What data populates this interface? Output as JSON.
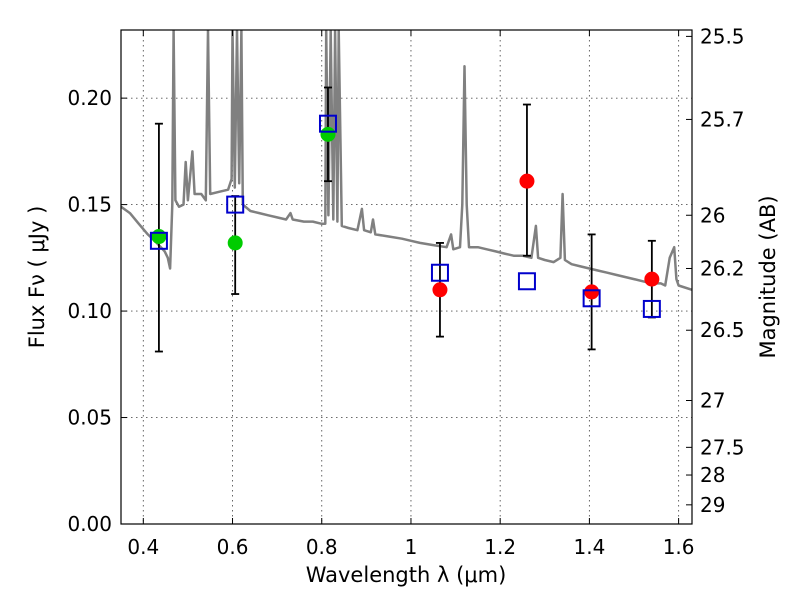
{
  "chart_data": {
    "type": "scatter",
    "title": "",
    "xlabel": "Wavelength  λ (μm)",
    "ylabel": "Flux  Fν  ( μJy )",
    "ylabel_right": "Magnitude (AB)",
    "xlim": [
      0.35,
      1.63
    ],
    "ylim": [
      0.0,
      0.232
    ],
    "grid": true,
    "legend": "none",
    "x_ticks": [
      {
        "v": 0.4,
        "label": "0.4"
      },
      {
        "v": 0.6,
        "label": "0.6"
      },
      {
        "v": 0.8,
        "label": "0.8"
      },
      {
        "v": 1.0,
        "label": "1"
      },
      {
        "v": 1.2,
        "label": "1.2"
      },
      {
        "v": 1.4,
        "label": "1.4"
      },
      {
        "v": 1.6,
        "label": "1.6"
      }
    ],
    "y_ticks": [
      {
        "v": 0.0,
        "label": "0.00"
      },
      {
        "v": 0.05,
        "label": "0.05"
      },
      {
        "v": 0.1,
        "label": "0.10"
      },
      {
        "v": 0.15,
        "label": "0.15"
      },
      {
        "v": 0.2,
        "label": "0.20"
      }
    ],
    "right_ticks": [
      {
        "label": "25.5",
        "flux": 0.229
      },
      {
        "label": "25.7",
        "flux": 0.19
      },
      {
        "label": "26",
        "flux": 0.145
      },
      {
        "label": "26.2",
        "flux": 0.12
      },
      {
        "label": "26.5",
        "flux": 0.091
      },
      {
        "label": "27",
        "flux": 0.058
      },
      {
        "label": "27.5",
        "flux": 0.036
      },
      {
        "label": "28",
        "flux": 0.023
      },
      {
        "label": "29",
        "flux": 0.009
      }
    ],
    "series": [
      {
        "marker": "circle",
        "color": "#00cc00",
        "points": [
          {
            "x": 0.435,
            "y": 0.135
          },
          {
            "x": 0.606,
            "y": 0.132
          },
          {
            "x": 0.814,
            "y": 0.183
          }
        ]
      },
      {
        "marker": "circle",
        "color": "#ff0000",
        "points": [
          {
            "x": 1.065,
            "y": 0.11
          },
          {
            "x": 1.26,
            "y": 0.161
          },
          {
            "x": 1.405,
            "y": 0.109
          },
          {
            "x": 1.54,
            "y": 0.115
          }
        ]
      },
      {
        "marker": "open-square",
        "color": "#0000cc",
        "points": [
          {
            "x": 0.435,
            "y": 0.133
          },
          {
            "x": 0.606,
            "y": 0.15
          },
          {
            "x": 0.814,
            "y": 0.188
          },
          {
            "x": 1.065,
            "y": 0.118
          },
          {
            "x": 1.26,
            "y": 0.114
          },
          {
            "x": 1.405,
            "y": 0.106
          },
          {
            "x": 1.54,
            "y": 0.101
          }
        ]
      }
    ],
    "error_bars": [
      {
        "x": 0.435,
        "low": 0.081,
        "high": 0.188
      },
      {
        "x": 0.606,
        "low": 0.108,
        "high": 0.154
      },
      {
        "x": 0.814,
        "low": 0.161,
        "high": 0.205
      },
      {
        "x": 1.065,
        "low": 0.088,
        "high": 0.132
      },
      {
        "x": 1.26,
        "low": 0.126,
        "high": 0.197
      },
      {
        "x": 1.405,
        "low": 0.082,
        "high": 0.136
      },
      {
        "x": 1.54,
        "low": 0.097,
        "high": 0.133
      }
    ],
    "model_spectrum": {
      "color": "#808080",
      "points": [
        [
          0.35,
          0.149
        ],
        [
          0.37,
          0.146
        ],
        [
          0.39,
          0.141
        ],
        [
          0.41,
          0.136
        ],
        [
          0.43,
          0.132
        ],
        [
          0.448,
          0.128
        ],
        [
          0.455,
          0.125
        ],
        [
          0.46,
          0.12
        ],
        [
          0.465,
          0.15
        ],
        [
          0.468,
          0.232
        ],
        [
          0.472,
          0.152
        ],
        [
          0.48,
          0.149
        ],
        [
          0.49,
          0.15
        ],
        [
          0.495,
          0.17
        ],
        [
          0.5,
          0.152
        ],
        [
          0.51,
          0.175
        ],
        [
          0.515,
          0.155
        ],
        [
          0.53,
          0.155
        ],
        [
          0.54,
          0.152
        ],
        [
          0.545,
          0.232
        ],
        [
          0.55,
          0.155
        ],
        [
          0.57,
          0.156
        ],
        [
          0.59,
          0.157
        ],
        [
          0.598,
          0.162
        ],
        [
          0.6,
          0.232
        ],
        [
          0.605,
          0.158
        ],
        [
          0.61,
          0.232
        ],
        [
          0.615,
          0.16
        ],
        [
          0.62,
          0.232
        ],
        [
          0.623,
          0.15
        ],
        [
          0.64,
          0.147
        ],
        [
          0.66,
          0.146
        ],
        [
          0.68,
          0.145
        ],
        [
          0.7,
          0.144
        ],
        [
          0.72,
          0.143
        ],
        [
          0.73,
          0.146
        ],
        [
          0.735,
          0.143
        ],
        [
          0.76,
          0.142
        ],
        [
          0.78,
          0.142
        ],
        [
          0.8,
          0.141
        ],
        [
          0.808,
          0.141
        ],
        [
          0.81,
          0.232
        ],
        [
          0.815,
          0.145
        ],
        [
          0.82,
          0.232
        ],
        [
          0.826,
          0.143
        ],
        [
          0.83,
          0.232
        ],
        [
          0.835,
          0.142
        ],
        [
          0.838,
          0.232
        ],
        [
          0.845,
          0.14
        ],
        [
          0.86,
          0.139
        ],
        [
          0.88,
          0.138
        ],
        [
          0.89,
          0.148
        ],
        [
          0.895,
          0.138
        ],
        [
          0.91,
          0.137
        ],
        [
          0.915,
          0.143
        ],
        [
          0.92,
          0.136
        ],
        [
          0.95,
          0.135
        ],
        [
          0.98,
          0.134
        ],
        [
          1.0,
          0.133
        ],
        [
          1.02,
          0.132
        ],
        [
          1.05,
          0.131
        ],
        [
          1.08,
          0.13
        ],
        [
          1.09,
          0.136
        ],
        [
          1.095,
          0.129
        ],
        [
          1.11,
          0.13
        ],
        [
          1.115,
          0.15
        ],
        [
          1.12,
          0.215
        ],
        [
          1.125,
          0.15
        ],
        [
          1.13,
          0.13
        ],
        [
          1.15,
          0.13
        ],
        [
          1.17,
          0.129
        ],
        [
          1.19,
          0.128
        ],
        [
          1.21,
          0.127
        ],
        [
          1.23,
          0.126
        ],
        [
          1.25,
          0.126
        ],
        [
          1.27,
          0.125
        ],
        [
          1.28,
          0.14
        ],
        [
          1.285,
          0.125
        ],
        [
          1.3,
          0.124
        ],
        [
          1.32,
          0.123
        ],
        [
          1.335,
          0.125
        ],
        [
          1.34,
          0.155
        ],
        [
          1.345,
          0.124
        ],
        [
          1.36,
          0.122
        ],
        [
          1.38,
          0.121
        ],
        [
          1.4,
          0.12
        ],
        [
          1.42,
          0.119
        ],
        [
          1.44,
          0.118
        ],
        [
          1.46,
          0.117
        ],
        [
          1.48,
          0.116
        ],
        [
          1.5,
          0.115
        ],
        [
          1.52,
          0.114
        ],
        [
          1.54,
          0.113
        ],
        [
          1.56,
          0.113
        ],
        [
          1.57,
          0.112
        ],
        [
          1.58,
          0.125
        ],
        [
          1.59,
          0.13
        ],
        [
          1.595,
          0.115
        ],
        [
          1.6,
          0.112
        ],
        [
          1.63,
          0.11
        ]
      ]
    }
  }
}
